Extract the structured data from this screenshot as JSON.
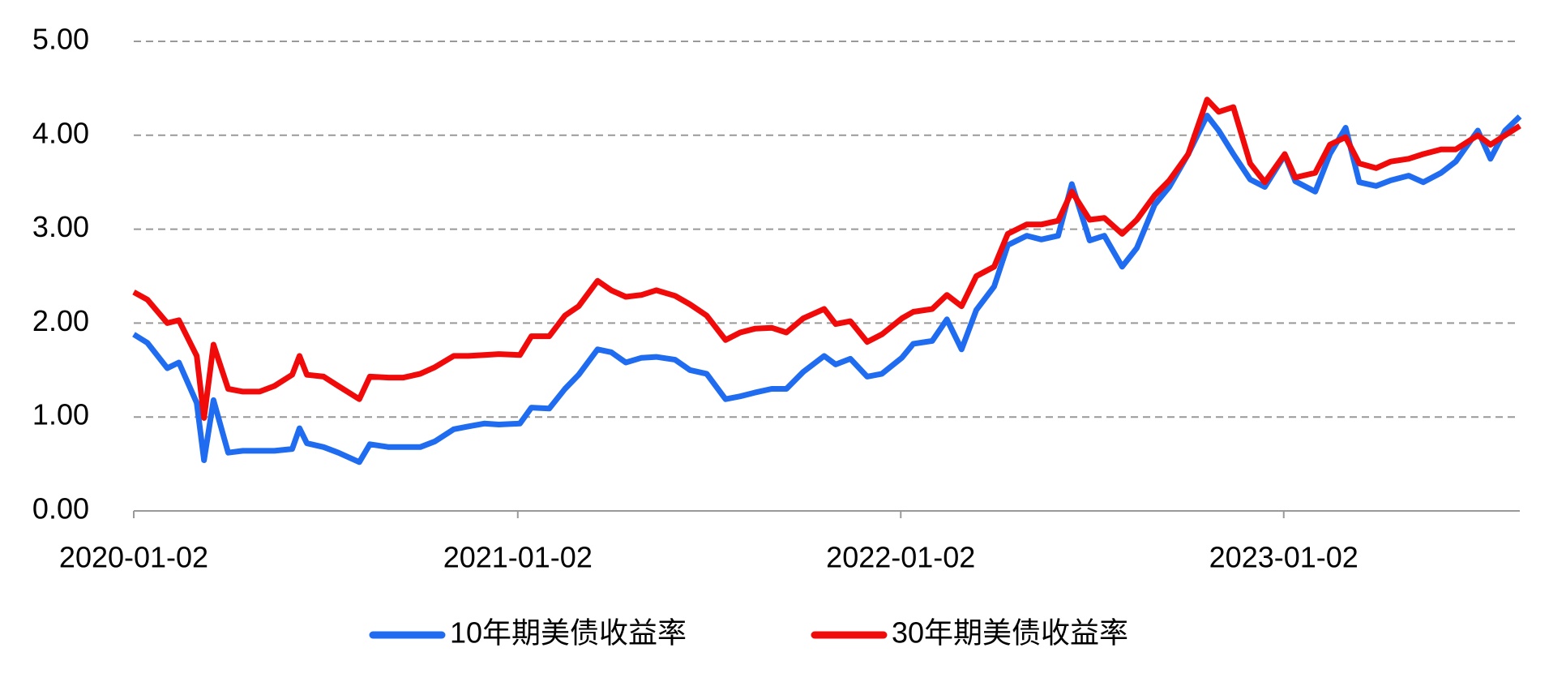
{
  "chart_data": {
    "type": "line",
    "x": [
      "2020-01-02",
      "2020-01-15",
      "2020-02-03",
      "2020-02-14",
      "2020-03-02",
      "2020-03-09",
      "2020-03-18",
      "2020-04-01",
      "2020-04-15",
      "2020-05-01",
      "2020-05-15",
      "2020-06-01",
      "2020-06-08",
      "2020-06-15",
      "2020-07-01",
      "2020-07-15",
      "2020-08-04",
      "2020-08-14",
      "2020-09-01",
      "2020-09-15",
      "2020-10-01",
      "2020-10-15",
      "2020-11-02",
      "2020-11-16",
      "2020-12-01",
      "2020-12-15",
      "2021-01-04",
      "2021-01-15",
      "2021-02-01",
      "2021-02-16",
      "2021-03-01",
      "2021-03-19",
      "2021-04-01",
      "2021-04-15",
      "2021-04-30",
      "2021-05-14",
      "2021-06-01",
      "2021-06-15",
      "2021-07-01",
      "2021-07-19",
      "2021-08-02",
      "2021-08-16",
      "2021-09-01",
      "2021-09-15",
      "2021-10-01",
      "2021-10-21",
      "2021-11-01",
      "2021-11-15",
      "2021-12-01",
      "2021-12-15",
      "2022-01-03",
      "2022-01-14",
      "2022-02-01",
      "2022-02-15",
      "2022-03-01",
      "2022-03-15",
      "2022-04-01",
      "2022-04-14",
      "2022-05-02",
      "2022-05-16",
      "2022-06-01",
      "2022-06-14",
      "2022-07-01",
      "2022-07-15",
      "2022-08-01",
      "2022-08-15",
      "2022-09-01",
      "2022-09-15",
      "2022-10-03",
      "2022-10-21",
      "2022-11-01",
      "2022-11-15",
      "2022-12-01",
      "2022-12-15",
      "2023-01-03",
      "2023-01-13",
      "2023-02-01",
      "2023-02-15",
      "2023-03-02",
      "2023-03-15",
      "2023-03-31",
      "2023-04-14",
      "2023-05-01",
      "2023-05-15",
      "2023-06-01",
      "2023-06-15",
      "2023-07-06",
      "2023-07-18",
      "2023-08-01",
      "2023-08-15"
    ],
    "series": [
      {
        "name": "10年期美债收益率",
        "color": "#1f6cf0",
        "values": [
          1.88,
          1.79,
          1.52,
          1.58,
          1.15,
          0.54,
          1.18,
          0.62,
          0.64,
          0.64,
          0.64,
          0.66,
          0.88,
          0.72,
          0.68,
          0.62,
          0.52,
          0.71,
          0.68,
          0.68,
          0.68,
          0.74,
          0.87,
          0.9,
          0.93,
          0.92,
          0.93,
          1.1,
          1.09,
          1.3,
          1.45,
          1.72,
          1.69,
          1.58,
          1.63,
          1.64,
          1.61,
          1.5,
          1.46,
          1.19,
          1.22,
          1.26,
          1.3,
          1.3,
          1.48,
          1.65,
          1.56,
          1.62,
          1.43,
          1.46,
          1.63,
          1.78,
          1.81,
          2.04,
          1.72,
          2.14,
          2.39,
          2.83,
          2.93,
          2.89,
          2.93,
          3.48,
          2.88,
          2.93,
          2.6,
          2.8,
          3.26,
          3.45,
          3.8,
          4.21,
          4.05,
          3.8,
          3.53,
          3.45,
          3.79,
          3.51,
          3.4,
          3.8,
          4.08,
          3.5,
          3.46,
          3.52,
          3.57,
          3.5,
          3.6,
          3.72,
          4.05,
          3.75,
          4.05,
          4.2
        ]
      },
      {
        "name": "30年期美债收益率",
        "color": "#f00a0a",
        "values": [
          2.33,
          2.25,
          2.0,
          2.03,
          1.65,
          0.99,
          1.77,
          1.3,
          1.27,
          1.27,
          1.33,
          1.45,
          1.65,
          1.45,
          1.43,
          1.33,
          1.19,
          1.43,
          1.42,
          1.42,
          1.46,
          1.53,
          1.65,
          1.65,
          1.66,
          1.67,
          1.66,
          1.86,
          1.86,
          2.08,
          2.18,
          2.45,
          2.35,
          2.28,
          2.3,
          2.35,
          2.29,
          2.2,
          2.08,
          1.82,
          1.9,
          1.94,
          1.95,
          1.9,
          2.05,
          2.15,
          1.99,
          2.02,
          1.8,
          1.88,
          2.05,
          2.12,
          2.15,
          2.3,
          2.18,
          2.5,
          2.6,
          2.95,
          3.05,
          3.05,
          3.09,
          3.4,
          3.1,
          3.12,
          2.95,
          3.1,
          3.36,
          3.52,
          3.8,
          4.38,
          4.25,
          4.3,
          3.7,
          3.5,
          3.8,
          3.55,
          3.6,
          3.9,
          3.98,
          3.7,
          3.65,
          3.72,
          3.75,
          3.8,
          3.85,
          3.85,
          4.0,
          3.9,
          4.0,
          4.1
        ]
      }
    ],
    "xlim": [
      "2020-01-02",
      "2023-08-15"
    ],
    "xticks": [
      "2020-01-02",
      "2021-01-02",
      "2022-01-02",
      "2023-01-02"
    ],
    "ylim": [
      0,
      5
    ],
    "yticks": [
      {
        "value": 0,
        "label": "0.00"
      },
      {
        "value": 1,
        "label": "1.00"
      },
      {
        "value": 2,
        "label": "2.00"
      },
      {
        "value": 3,
        "label": "3.00"
      },
      {
        "value": 4,
        "label": "4.00"
      },
      {
        "value": 5,
        "label": "5.00"
      }
    ],
    "grid": true,
    "legend": "bottom"
  }
}
